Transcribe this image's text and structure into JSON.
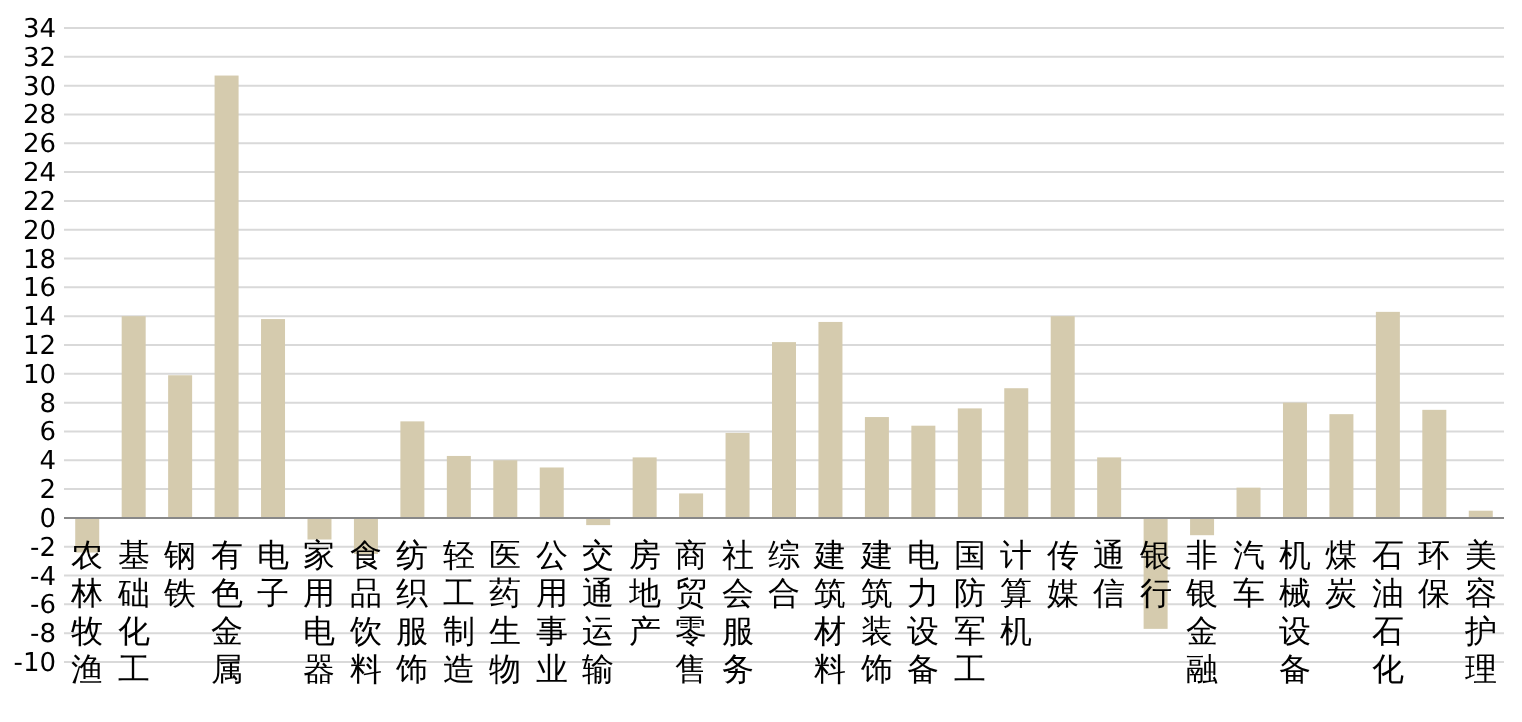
{
  "chart_data": {
    "type": "bar",
    "categories": [
      "农林牧渔",
      "基础化工",
      "钢铁",
      "有色金属",
      "电子",
      "家用电器",
      "食品饮料",
      "纺织服饰",
      "轻工制造",
      "医药生物",
      "公用事业",
      "交通运输",
      "房地产",
      "商贸零售",
      "社会服务",
      "综合",
      "建筑材料",
      "建筑装饰",
      "电力设备",
      "国防军工",
      "计算机",
      "传媒",
      "通信",
      "银行",
      "非银金融",
      "汽车",
      "机械设备",
      "煤炭",
      "石油石化",
      "环保",
      "美容护理"
    ],
    "values": [
      -2.4,
      14.0,
      9.9,
      30.7,
      13.8,
      -1.5,
      -2.5,
      6.7,
      4.3,
      4.0,
      3.5,
      -0.5,
      4.2,
      1.7,
      5.9,
      12.2,
      13.6,
      7.0,
      6.4,
      7.6,
      9.0,
      14.0,
      4.2,
      -7.7,
      -1.2,
      2.1,
      8.0,
      7.2,
      14.3,
      7.5,
      0.5
    ],
    "color": "#d5cbae",
    "ylim": [
      -10,
      34
    ],
    "yticks": [
      -10,
      -8,
      -6,
      -4,
      -2,
      0,
      2,
      4,
      6,
      8,
      10,
      12,
      14,
      16,
      18,
      20,
      22,
      24,
      26,
      28,
      30,
      32,
      34
    ],
    "grid": "y"
  }
}
